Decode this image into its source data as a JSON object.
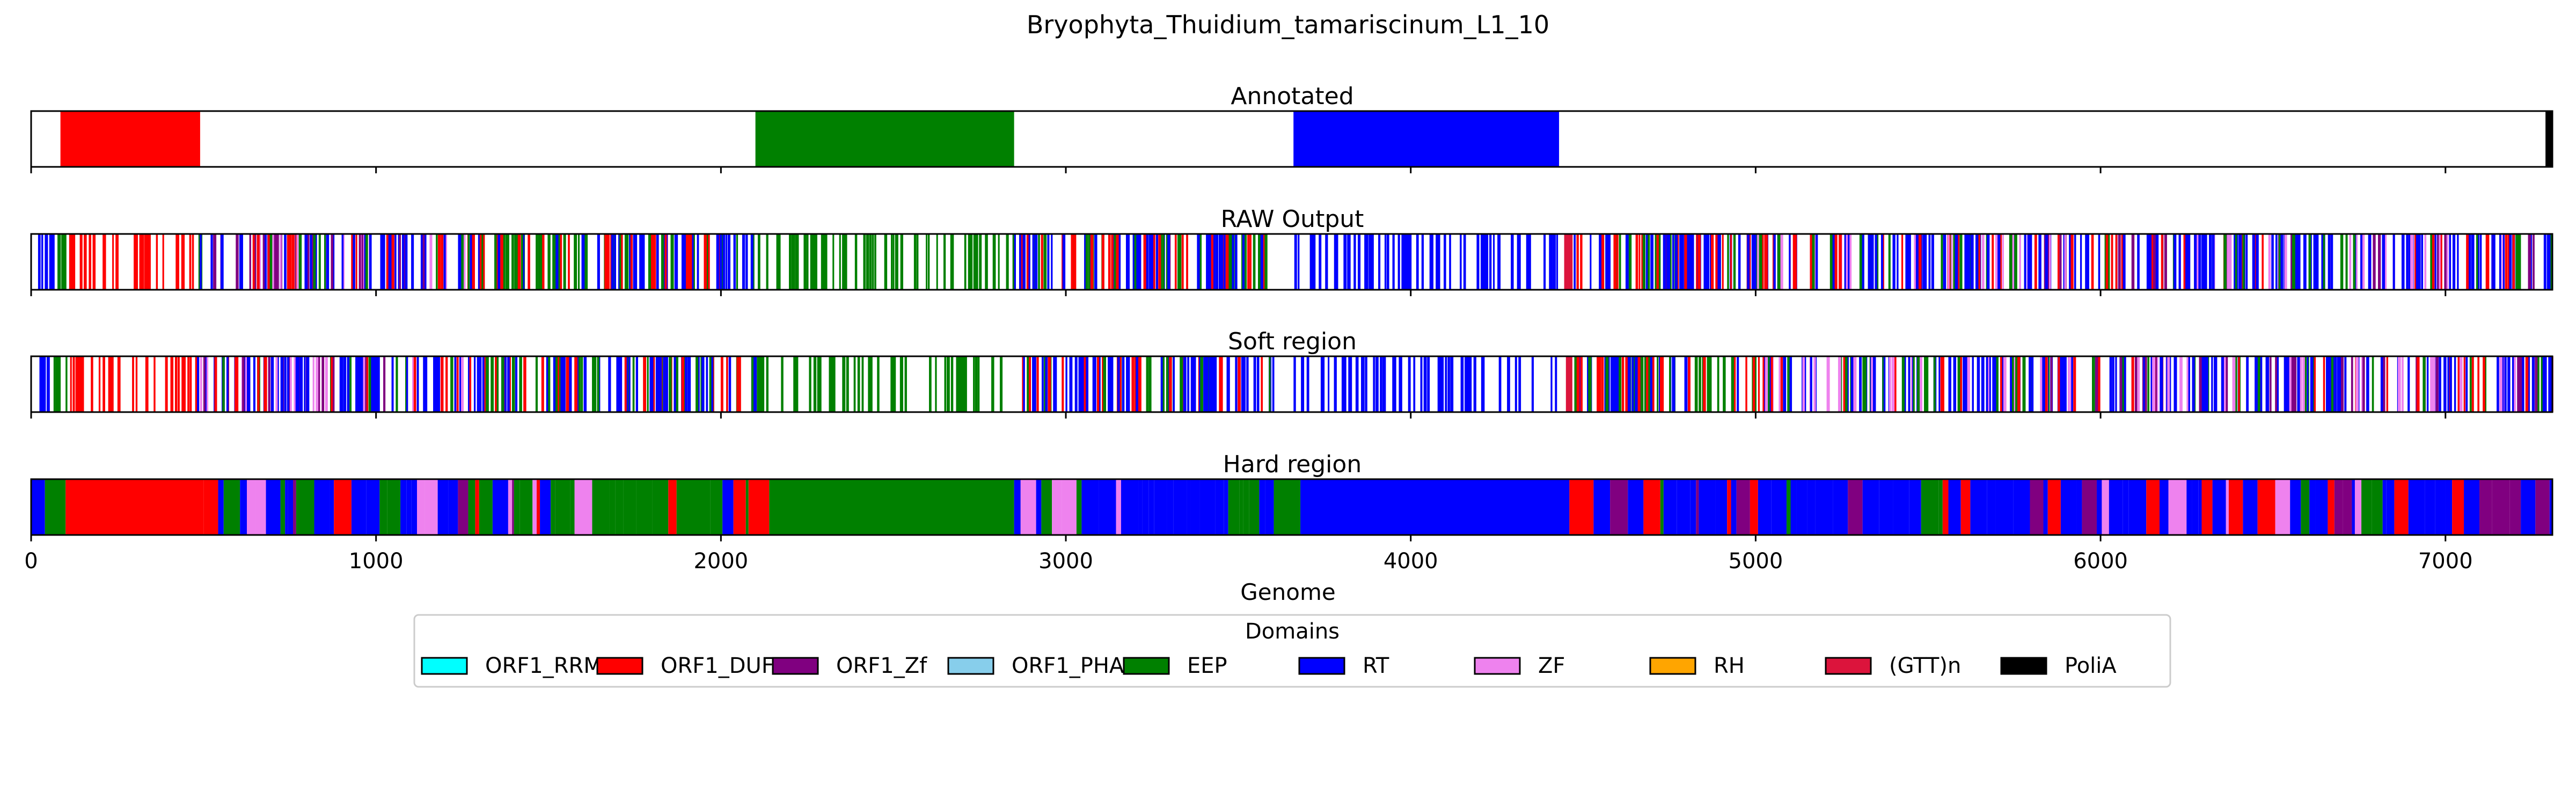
{
  "chart_data": {
    "type": "genome-track",
    "title": "Bryophyta_Thuidium_tamariscinum_L1_10",
    "xlabel": "Genome",
    "xlim": [
      0,
      7310
    ],
    "xticks": [
      0,
      1000,
      2000,
      3000,
      4000,
      5000,
      6000,
      7000
    ],
    "legend": {
      "title": "Domains",
      "placement": "bottom-center",
      "items": [
        {
          "name": "ORF1_RRM",
          "color": "#00ffff"
        },
        {
          "name": "ORF1_DUF",
          "color": "#ff0000"
        },
        {
          "name": "ORF1_Zf",
          "color": "#800080"
        },
        {
          "name": "ORF1_PHA",
          "color": "#87ceeb"
        },
        {
          "name": "EEP",
          "color": "#008000"
        },
        {
          "name": "RT",
          "color": "#0000ff"
        },
        {
          "name": "ZF",
          "color": "#ee82ee"
        },
        {
          "name": "RH",
          "color": "#ffa500"
        },
        {
          "name": "(GTT)n",
          "color": "#dc143c"
        },
        {
          "name": "PoliA",
          "color": "#000000"
        }
      ]
    },
    "tracks": [
      {
        "title": "Annotated",
        "style": "blocks",
        "segments": [
          {
            "start": 85,
            "end": 490,
            "domain": "ORF1_DUF"
          },
          {
            "start": 2100,
            "end": 2850,
            "domain": "EEP"
          },
          {
            "start": 3660,
            "end": 4430,
            "domain": "RT"
          },
          {
            "start": 7290,
            "end": 7310,
            "domain": "PoliA"
          }
        ]
      },
      {
        "title": "RAW Output",
        "style": "lines",
        "segments": [
          {
            "start": 20,
            "end": 60,
            "domain": "RT"
          },
          {
            "start": 60,
            "end": 100,
            "domain": "EEP"
          },
          {
            "start": 100,
            "end": 480,
            "domain": "ORF1_DUF",
            "sparse": true
          },
          {
            "start": 480,
            "end": 1300,
            "domain": "RT",
            "mixed": [
              "EEP",
              "ORF1_DUF",
              "ORF1_Zf",
              "ZF"
            ]
          },
          {
            "start": 1300,
            "end": 1600,
            "domain": "EEP",
            "mixed": [
              "RT",
              "ORF1_DUF"
            ]
          },
          {
            "start": 1600,
            "end": 2100,
            "domain": "RT",
            "mixed": [
              "EEP",
              "ORF1_DUF"
            ]
          },
          {
            "start": 2100,
            "end": 2850,
            "domain": "EEP",
            "sparse": true
          },
          {
            "start": 2850,
            "end": 3600,
            "domain": "RT",
            "mixed": [
              "ORF1_DUF",
              "EEP"
            ]
          },
          {
            "start": 3660,
            "end": 4430,
            "domain": "RT",
            "sparse": true
          },
          {
            "start": 4430,
            "end": 4470,
            "domain": "(GTT)n"
          },
          {
            "start": 4470,
            "end": 5000,
            "domain": "RT",
            "mixed": [
              "EEP",
              "ORF1_DUF"
            ]
          },
          {
            "start": 5000,
            "end": 5800,
            "domain": "RT",
            "mixed": [
              "ORF1_DUF",
              "EEP",
              "ZF"
            ]
          },
          {
            "start": 5800,
            "end": 7310,
            "domain": "RT",
            "mixed": [
              "EEP",
              "ORF1_DUF",
              "ORF1_Zf",
              "ZF"
            ]
          }
        ]
      },
      {
        "title": "Soft region",
        "style": "lines",
        "segments": [
          {
            "start": 20,
            "end": 60,
            "domain": "RT"
          },
          {
            "start": 60,
            "end": 100,
            "domain": "EEP"
          },
          {
            "start": 100,
            "end": 480,
            "domain": "ORF1_DUF",
            "sparse": true
          },
          {
            "start": 480,
            "end": 1300,
            "domain": "RT",
            "mixed": [
              "EEP",
              "ORF1_DUF",
              "ORF1_Zf",
              "ZF"
            ]
          },
          {
            "start": 1300,
            "end": 1600,
            "domain": "EEP",
            "mixed": [
              "RT",
              "ORF1_DUF"
            ]
          },
          {
            "start": 1600,
            "end": 2100,
            "domain": "RT",
            "mixed": [
              "EEP",
              "ORF1_DUF"
            ]
          },
          {
            "start": 2100,
            "end": 2850,
            "domain": "EEP",
            "sparse": true
          },
          {
            "start": 2850,
            "end": 3600,
            "domain": "RT",
            "mixed": [
              "ORF1_DUF",
              "EEP"
            ]
          },
          {
            "start": 3660,
            "end": 4430,
            "domain": "RT",
            "sparse": true
          },
          {
            "start": 4430,
            "end": 4470,
            "domain": "(GTT)n"
          },
          {
            "start": 4470,
            "end": 5000,
            "domain": "RT",
            "mixed": [
              "EEP",
              "ORF1_DUF"
            ]
          },
          {
            "start": 5000,
            "end": 5800,
            "domain": "RT",
            "mixed": [
              "ORF1_DUF",
              "EEP",
              "ZF"
            ]
          },
          {
            "start": 5800,
            "end": 7310,
            "domain": "RT",
            "mixed": [
              "EEP",
              "ORF1_DUF",
              "ORF1_Zf",
              "ZF"
            ]
          }
        ]
      },
      {
        "title": "Hard region",
        "style": "blocks",
        "segments": [
          {
            "start": 0,
            "end": 40,
            "domain": "RT"
          },
          {
            "start": 40,
            "end": 100,
            "domain": "EEP"
          },
          {
            "start": 100,
            "end": 500,
            "domain": "ORF1_DUF"
          },
          {
            "start": 500,
            "end": 1400,
            "domain": "RT",
            "mixed": [
              "EEP",
              "ORF1_DUF",
              "ZF",
              "ORF1_Zf"
            ]
          },
          {
            "start": 1400,
            "end": 2080,
            "domain": "EEP",
            "mixed": [
              "RT",
              "ORF1_DUF",
              "ZF"
            ]
          },
          {
            "start": 2080,
            "end": 2140,
            "domain": "ORF1_DUF"
          },
          {
            "start": 2140,
            "end": 2850,
            "domain": "EEP"
          },
          {
            "start": 2850,
            "end": 3620,
            "domain": "RT",
            "mixed": [
              "ORF1_DUF",
              "EEP",
              "ZF"
            ]
          },
          {
            "start": 3620,
            "end": 3680,
            "domain": "EEP"
          },
          {
            "start": 3680,
            "end": 4460,
            "domain": "RT"
          },
          {
            "start": 4460,
            "end": 4530,
            "domain": "ORF1_DUF"
          },
          {
            "start": 4530,
            "end": 7310,
            "domain": "RT",
            "mixed": [
              "EEP",
              "ORF1_DUF",
              "ZF",
              "ORF1_Zf"
            ]
          }
        ]
      }
    ]
  }
}
